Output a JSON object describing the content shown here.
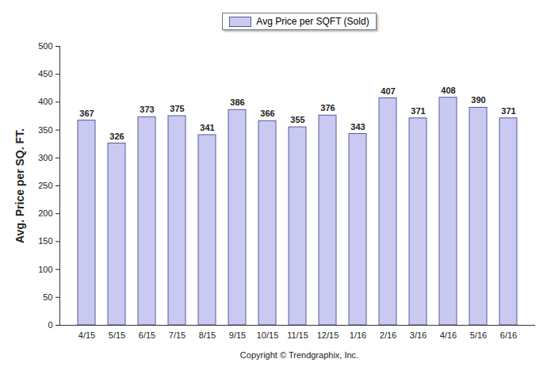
{
  "chart_data": {
    "type": "bar",
    "y_label": "Avg. Price per SQ. FT.",
    "caption": "Copyright © Trendgraphix, Inc.",
    "categories": [
      "4/15",
      "5/15",
      "6/15",
      "7/15",
      "8/15",
      "9/15",
      "10/15",
      "11/15",
      "12/15",
      "1/16",
      "2/16",
      "3/16",
      "4/16",
      "5/16",
      "6/16"
    ],
    "series": [
      {
        "name": "Avg Price per SQFT (Sold)",
        "color": "#c9c9f2",
        "values": [
          367,
          326,
          373,
          375,
          341,
          386,
          366,
          355,
          376,
          343,
          407,
          371,
          408,
          390,
          371
        ]
      }
    ],
    "ylim": [
      0,
      500
    ],
    "yticks": [
      0,
      50,
      100,
      150,
      200,
      250,
      300,
      350,
      400,
      450,
      500
    ],
    "grid": false,
    "legend": "top",
    "data_labels": true
  }
}
